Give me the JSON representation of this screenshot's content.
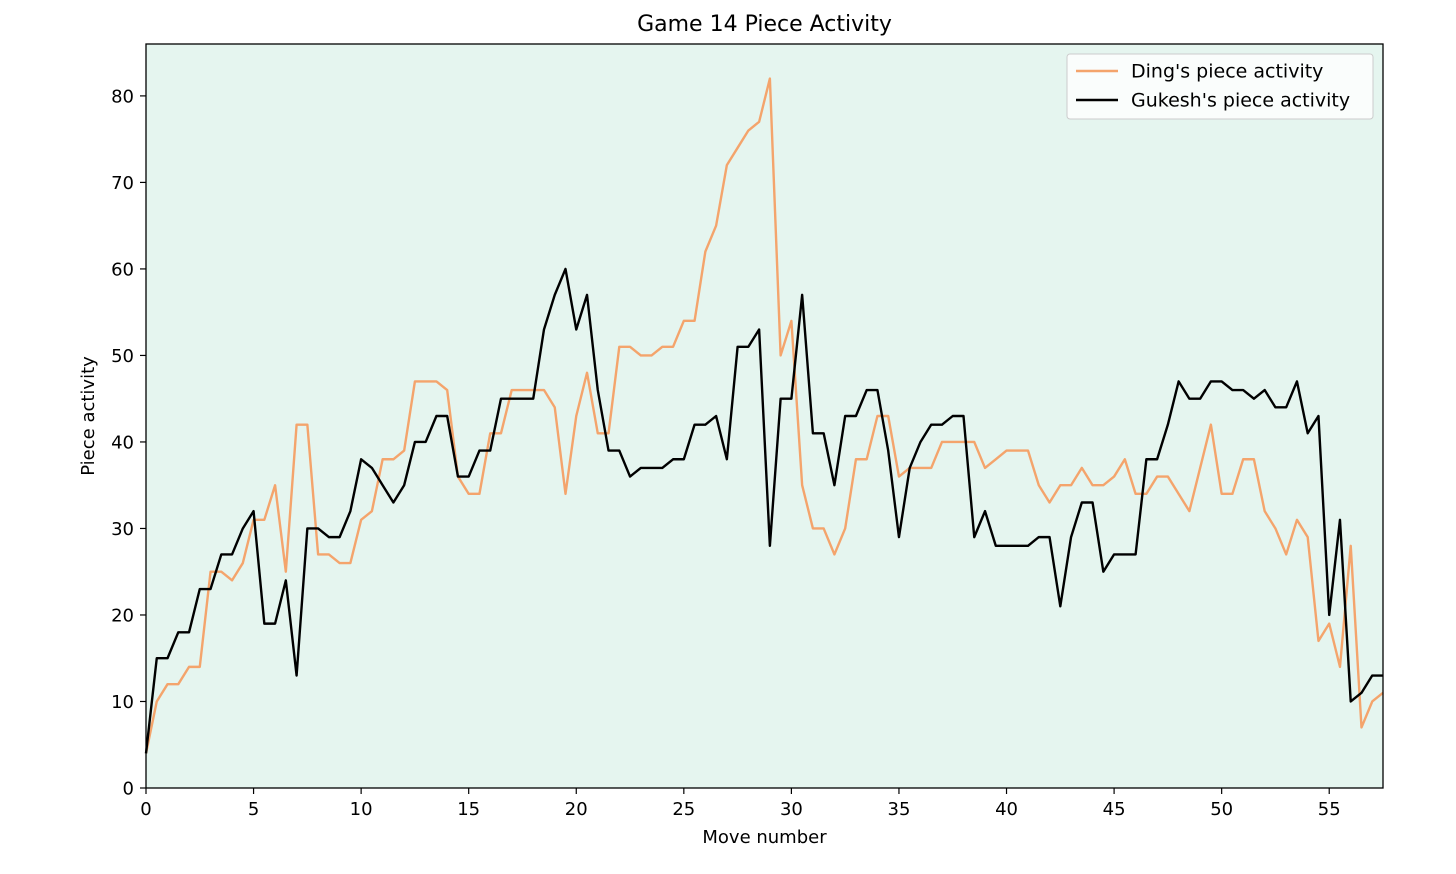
{
  "chart_data": {
    "type": "line",
    "title": "Game 14 Piece Activity",
    "xlabel": "Move number",
    "ylabel": "Piece activity",
    "xlim": [
      0,
      57.5
    ],
    "ylim": [
      0,
      86
    ],
    "x_ticks": [
      0,
      5,
      10,
      15,
      20,
      25,
      30,
      35,
      40,
      45,
      50,
      55
    ],
    "y_ticks": [
      0,
      10,
      20,
      30,
      40,
      50,
      60,
      70,
      80
    ],
    "background_color": "#e5f5ef",
    "grid": false,
    "legend_position": "top-right",
    "x_step": 0.5,
    "series": [
      {
        "name": "Ding's piece activity",
        "color": "#f4a46c",
        "values": [
          4,
          10,
          12,
          12,
          14,
          14,
          25,
          25,
          24,
          26,
          31,
          31,
          35,
          25,
          42,
          42,
          27,
          27,
          26,
          26,
          31,
          32,
          38,
          38,
          39,
          47,
          47,
          47,
          46,
          36,
          34,
          34,
          41,
          41,
          46,
          46,
          46,
          46,
          44,
          34,
          43,
          48,
          41,
          41,
          51,
          51,
          50,
          50,
          51,
          51,
          54,
          54,
          62,
          65,
          72,
          74,
          76,
          77,
          82,
          50,
          54,
          35,
          30,
          30,
          27,
          30,
          38,
          38,
          43,
          43,
          36,
          37,
          37,
          37,
          40,
          40,
          40,
          40,
          37,
          38,
          39,
          39,
          39,
          35,
          33,
          35,
          35,
          37,
          35,
          35,
          36,
          38,
          34,
          34,
          36,
          36,
          34,
          32,
          37,
          42,
          34,
          34,
          38,
          38,
          32,
          30,
          27,
          31,
          29,
          17,
          19,
          14,
          28,
          7,
          10,
          11
        ]
      },
      {
        "name": "Gukesh's piece activity",
        "color": "#000000",
        "values": [
          4,
          15,
          15,
          18,
          18,
          23,
          23,
          27,
          27,
          30,
          32,
          19,
          19,
          24,
          13,
          30,
          30,
          29,
          29,
          32,
          38,
          37,
          35,
          33,
          35,
          40,
          40,
          43,
          43,
          36,
          36,
          39,
          39,
          45,
          45,
          45,
          45,
          53,
          57,
          60,
          53,
          57,
          46,
          39,
          39,
          36,
          37,
          37,
          37,
          38,
          38,
          42,
          42,
          43,
          38,
          51,
          51,
          53,
          28,
          45,
          45,
          57,
          41,
          41,
          35,
          43,
          43,
          46,
          46,
          39,
          29,
          37,
          40,
          42,
          42,
          43,
          43,
          29,
          32,
          28,
          28,
          28,
          28,
          29,
          29,
          21,
          29,
          33,
          33,
          25,
          27,
          27,
          27,
          38,
          38,
          42,
          47,
          45,
          45,
          47,
          47,
          46,
          46,
          45,
          46,
          44,
          44,
          47,
          41,
          43,
          20,
          31,
          10,
          11,
          13,
          13
        ]
      }
    ]
  }
}
